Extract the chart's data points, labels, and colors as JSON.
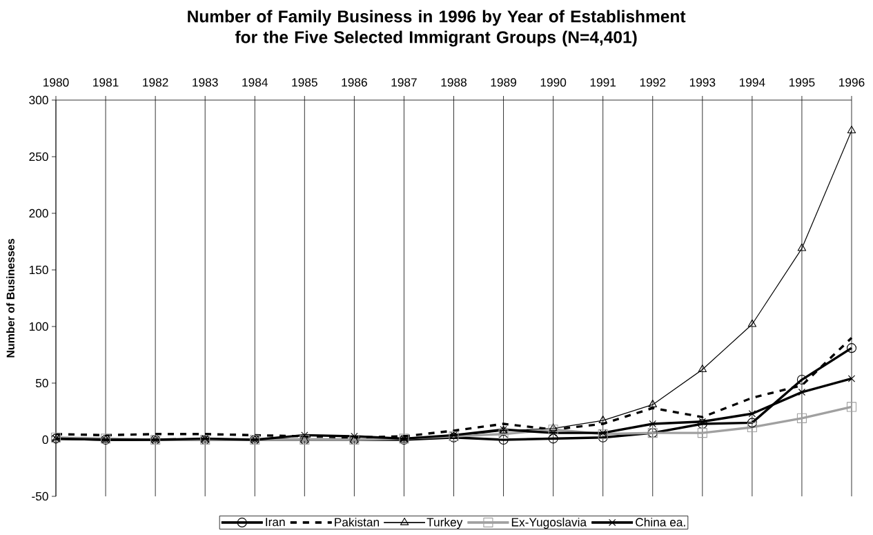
{
  "chart_data": {
    "type": "line",
    "title": "Number of Family Business in 1996 by Year of Establishment for the Five Selected Immigrant Groups (N=4,401)",
    "ylabel": "Number of Businesses",
    "categories": [
      "1980",
      "1981",
      "1982",
      "1983",
      "1984",
      "1985",
      "1986",
      "1987",
      "1988",
      "1989",
      "1990",
      "1991",
      "1992",
      "1993",
      "1994",
      "1995",
      "1996"
    ],
    "ylim": [
      -50,
      300
    ],
    "yticks": [
      -50,
      0,
      50,
      100,
      150,
      200,
      250,
      300
    ],
    "grid": "x",
    "legend": "bottom",
    "series": [
      {
        "name": "Iran",
        "color": "#000000",
        "marker": "circle",
        "line_style": "solid",
        "values": [
          1,
          0,
          0,
          0,
          0,
          0,
          0,
          0,
          2,
          0,
          1,
          2,
          6,
          14,
          15,
          53,
          81
        ]
      },
      {
        "name": "Pakistan",
        "color": "#000000",
        "marker": "none",
        "line_style": "dashed",
        "values": [
          5,
          4,
          5,
          5,
          4,
          3,
          2,
          3,
          8,
          14,
          9,
          14,
          28,
          20,
          37,
          48,
          90
        ]
      },
      {
        "name": "Turkey",
        "color": "#000000",
        "marker": "triangle",
        "line_style": "solid",
        "values": [
          0,
          0,
          0,
          0,
          0,
          0,
          0,
          0,
          3,
          8,
          10,
          17,
          31,
          62,
          102,
          169,
          273
        ]
      },
      {
        "name": "Ex-Yugoslavia",
        "color": "#a0a0a0",
        "marker": "square",
        "line_style": "solid",
        "values": [
          2,
          1,
          0,
          0,
          0,
          0,
          0,
          1,
          3,
          5,
          9,
          5,
          6,
          6,
          11,
          19,
          29
        ]
      },
      {
        "name": "China ea.",
        "color": "#000000",
        "marker": "cross",
        "line_style": "solid",
        "values": [
          1,
          0,
          0,
          1,
          0,
          4,
          3,
          1,
          4,
          9,
          6,
          6,
          14,
          16,
          23,
          42,
          54
        ]
      }
    ]
  }
}
